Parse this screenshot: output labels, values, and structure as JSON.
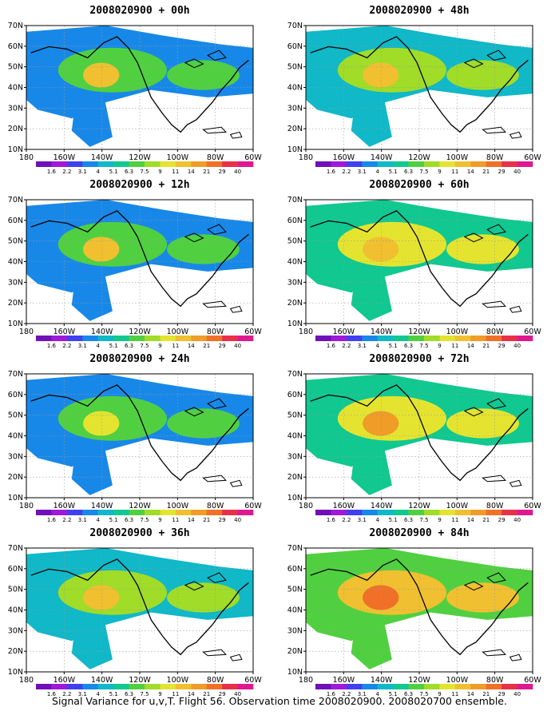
{
  "caption": "Signal Variance for u,v,T. Flight 56. Observation time 2008020900. 2008020700 ensemble.",
  "lat_labels": [
    "70N",
    "60N",
    "50N",
    "40N",
    "30N",
    "20N",
    "10N"
  ],
  "lon_labels": [
    "180",
    "160W",
    "140W",
    "120W",
    "100W",
    "80W",
    "60W"
  ],
  "colorbar": {
    "labels": [
      "1.6",
      "2.2",
      "3.1",
      "4",
      "5.1",
      "6.3",
      "7.5",
      "9",
      "11",
      "14",
      "21",
      "29",
      "40"
    ],
    "colors": [
      "#7010b8",
      "#a018d8",
      "#4040f0",
      "#1888e8",
      "#10b8c8",
      "#10c890",
      "#50d040",
      "#a0dc28",
      "#e4e430",
      "#f0c030",
      "#f09c28",
      "#f07028",
      "#e83048",
      "#e01890"
    ]
  },
  "panels": [
    {
      "title": "2008020900 + 00h",
      "levels": [
        3,
        6,
        9
      ]
    },
    {
      "title": "2008020900 + 48h",
      "levels": [
        4,
        7,
        9
      ]
    },
    {
      "title": "2008020900 + 12h",
      "levels": [
        3,
        6,
        9
      ]
    },
    {
      "title": "2008020900 + 60h",
      "levels": [
        5,
        8,
        9
      ]
    },
    {
      "title": "2008020900 + 24h",
      "levels": [
        3,
        6,
        8
      ]
    },
    {
      "title": "2008020900 + 72h",
      "levels": [
        5,
        8,
        10
      ]
    },
    {
      "title": "2008020900 + 36h",
      "levels": [
        4,
        7,
        9
      ]
    },
    {
      "title": "2008020900 + 84h",
      "levels": [
        6,
        9,
        11
      ]
    }
  ]
}
